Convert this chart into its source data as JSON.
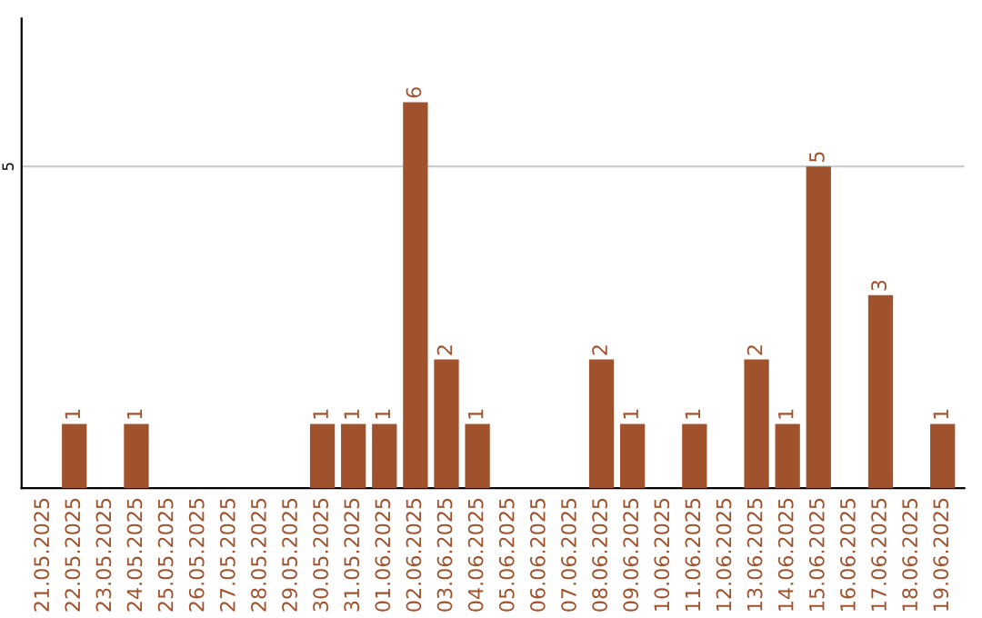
{
  "chart_data": {
    "type": "bar",
    "categories": [
      "21.05.2025",
      "22.05.2025",
      "23.05.2025",
      "24.05.2025",
      "25.05.2025",
      "26.05.2025",
      "27.05.2025",
      "28.05.2025",
      "29.05.2025",
      "30.05.2025",
      "31.05.2025",
      "01.06.2025",
      "02.06.2025",
      "03.06.2025",
      "04.06.2025",
      "05.06.2025",
      "06.06.2025",
      "07.06.2025",
      "08.06.2025",
      "09.06.2025",
      "10.06.2025",
      "11.06.2025",
      "12.06.2025",
      "13.06.2025",
      "14.06.2025",
      "15.06.2025",
      "16.06.2025",
      "17.06.2025",
      "18.06.2025",
      "19.06.2025"
    ],
    "values": [
      0,
      1,
      0,
      1,
      0,
      0,
      0,
      0,
      0,
      1,
      1,
      1,
      6,
      2,
      1,
      0,
      0,
      0,
      2,
      1,
      0,
      1,
      0,
      2,
      1,
      5,
      0,
      3,
      0,
      1
    ],
    "value_labels": [
      null,
      "1",
      null,
      "1",
      null,
      null,
      null,
      null,
      null,
      "1",
      "1",
      "1",
      "6",
      "2",
      "1",
      null,
      null,
      null,
      "2",
      "1",
      null,
      "1",
      null,
      "2",
      "1",
      "5",
      null,
      "3",
      null,
      "1"
    ],
    "color": "#a0522d",
    "ylim": [
      0,
      7.3
    ],
    "yticks": [
      5
    ],
    "grid": "y",
    "legend": false
  }
}
